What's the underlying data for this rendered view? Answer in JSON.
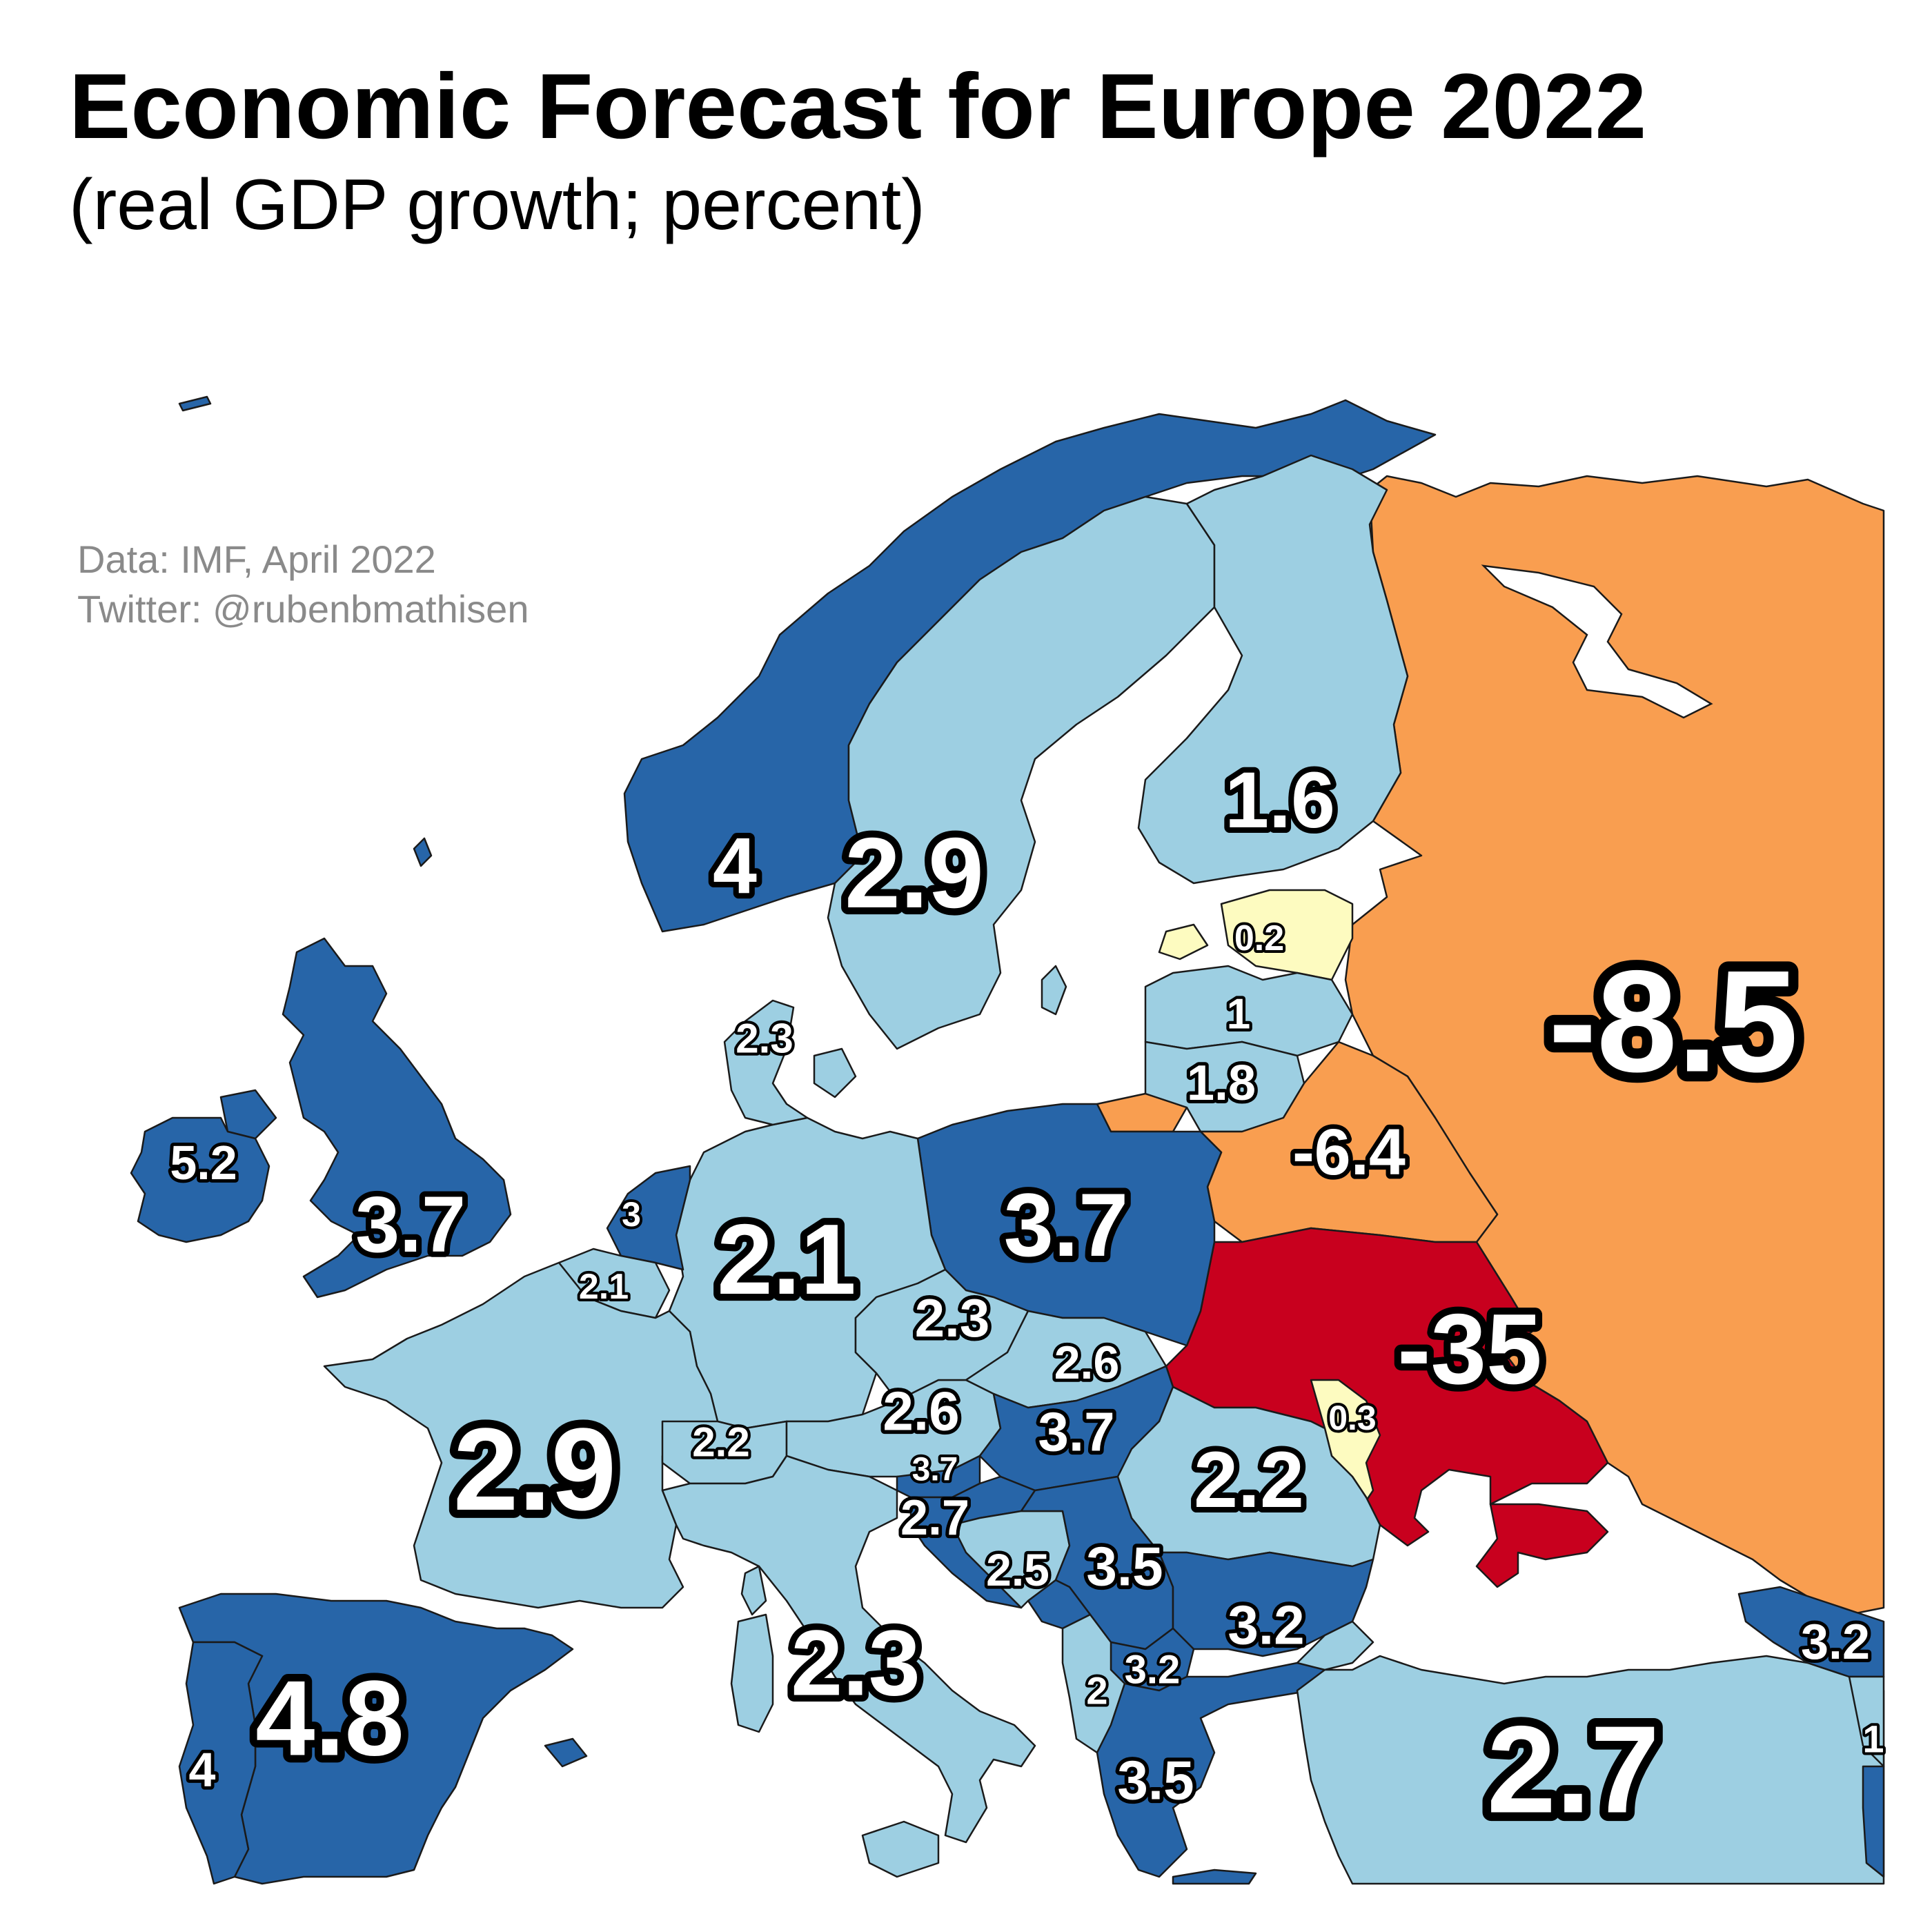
{
  "title": "Economic Forecast for Europe 2022",
  "subtitle": "(real GDP growth; percent)",
  "credits": {
    "source": "Data: IMF, April 2022",
    "twitter": "Twitter: @rubenbmathisen"
  },
  "legend_colors": {
    "strong_growth": "#2765a8",
    "moderate_growth": "#9dcfe2",
    "weak_growth": "#fdfbc0",
    "contraction": "#f99e50",
    "severe_contraction": "#c8001e"
  },
  "chart_data": {
    "type": "choropleth",
    "metric": "real GDP growth, percent, 2022 forecast",
    "countries": [
      {
        "id": "norway",
        "value": "4"
      },
      {
        "id": "sweden",
        "value": "2.9"
      },
      {
        "id": "finland",
        "value": "1.6"
      },
      {
        "id": "russia",
        "value": "-8.5"
      },
      {
        "id": "estonia",
        "value": "0.2"
      },
      {
        "id": "latvia",
        "value": "1"
      },
      {
        "id": "lithuania",
        "value": "1.8"
      },
      {
        "id": "belarus",
        "value": "-6.4"
      },
      {
        "id": "denmark",
        "value": "2.3"
      },
      {
        "id": "ireland",
        "value": "5.2"
      },
      {
        "id": "united-kingdom",
        "value": "3.7"
      },
      {
        "id": "netherlands",
        "value": "3"
      },
      {
        "id": "belgium",
        "value": "2.1"
      },
      {
        "id": "germany",
        "value": "2.1"
      },
      {
        "id": "poland",
        "value": "3.7"
      },
      {
        "id": "czechia",
        "value": "2.3"
      },
      {
        "id": "slovakia",
        "value": "2.6"
      },
      {
        "id": "ukraine",
        "value": "-35"
      },
      {
        "id": "moldova",
        "value": "0.3"
      },
      {
        "id": "austria",
        "value": "2.6"
      },
      {
        "id": "hungary",
        "value": "3.7"
      },
      {
        "id": "switzerland",
        "value": "2.2"
      },
      {
        "id": "slovenia",
        "value": "3.7"
      },
      {
        "id": "croatia",
        "value": "2.7"
      },
      {
        "id": "bosnia",
        "value": "2.5"
      },
      {
        "id": "serbia",
        "value": "3.5"
      },
      {
        "id": "romania",
        "value": "2.2"
      },
      {
        "id": "bulgaria",
        "value": "3.2"
      },
      {
        "id": "france",
        "value": "2.9"
      },
      {
        "id": "italy",
        "value": "2.3"
      },
      {
        "id": "spain",
        "value": "4.8"
      },
      {
        "id": "portugal",
        "value": "4"
      },
      {
        "id": "albania",
        "value": "2"
      },
      {
        "id": "north-macedonia",
        "value": "3.2"
      },
      {
        "id": "greece",
        "value": "3.5"
      },
      {
        "id": "turkey",
        "value": "2.7"
      },
      {
        "id": "georgia",
        "value": "3.2"
      },
      {
        "id": "armenia",
        "value": "1"
      }
    ]
  }
}
